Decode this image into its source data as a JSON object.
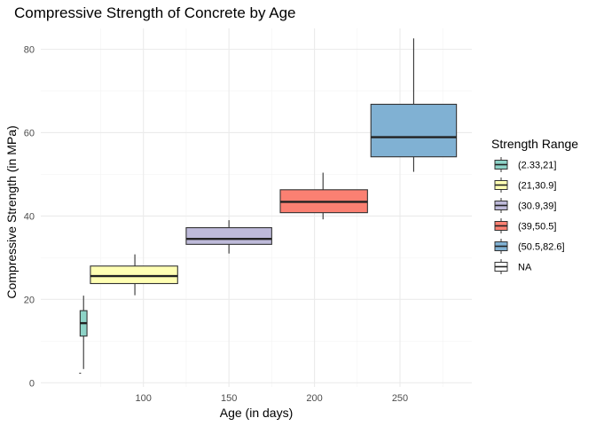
{
  "chart_data": {
    "type": "boxplot",
    "title": "Compressive Strength of Concrete by Age",
    "xlabel": "Age (in days)",
    "ylabel": "Compressive Strength (in MPa)",
    "xlim": [
      40,
      292
    ],
    "ylim": [
      -1,
      85
    ],
    "x_ticks": [
      100,
      150,
      200,
      250
    ],
    "y_ticks": [
      0,
      20,
      40,
      60,
      80
    ],
    "grid": true,
    "legend": {
      "title": "Strength Range",
      "position": "right"
    },
    "series": [
      {
        "name": "(2.33,21]",
        "color": "#8dd3c7",
        "x_left": 63,
        "x_right": 67,
        "x_center": 65,
        "min": 3.3,
        "q1": 11.2,
        "median": 14.3,
        "q3": 17.3,
        "max": 20.9
      },
      {
        "name": "(21,30.9]",
        "color": "#ffffb3",
        "x_left": 69,
        "x_right": 120,
        "x_center": 95,
        "min": 21.0,
        "q1": 23.8,
        "median": 25.6,
        "q3": 28.0,
        "max": 30.8
      },
      {
        "name": "(30.9,39]",
        "color": "#bebada",
        "x_left": 125,
        "x_right": 175,
        "x_center": 150,
        "min": 31.0,
        "q1": 33.2,
        "median": 34.5,
        "q3": 37.2,
        "max": 39.0
      },
      {
        "name": "(39,50.5]",
        "color": "#fb8072",
        "x_left": 180,
        "x_right": 231,
        "x_center": 205,
        "min": 39.2,
        "q1": 40.8,
        "median": 43.4,
        "q3": 46.3,
        "max": 50.4
      },
      {
        "name": "(50.5,82.6]",
        "color": "#80b1d3",
        "x_left": 233,
        "x_right": 283,
        "x_center": 258,
        "min": 50.6,
        "q1": 54.2,
        "median": 58.9,
        "q3": 66.8,
        "max": 82.6
      },
      {
        "name": "NA",
        "color": "#ffffff",
        "x_center": 63,
        "values": [
          2.3
        ]
      }
    ]
  }
}
